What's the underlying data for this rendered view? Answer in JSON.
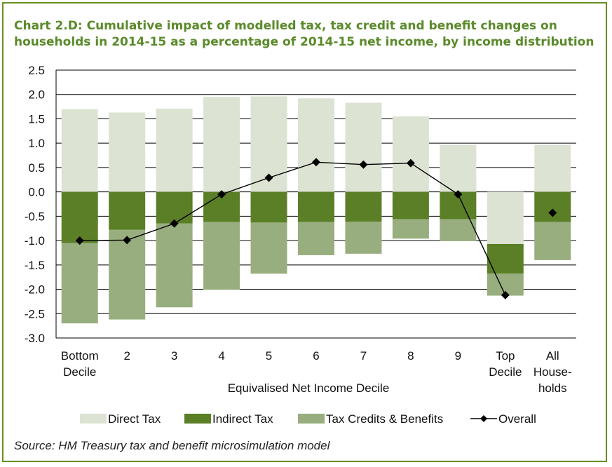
{
  "chart_data": {
    "type": "bar",
    "stacked": true,
    "title": "Chart 2.D: Cumulative impact of modelled tax, tax credit and benefit changes on households in 2014-15 as a percentage of 2014-15 net income, by income distribution",
    "title_lines": [
      "Chart 2.D: Cumulative impact of modelled tax, tax credit and benefit changes on",
      "households in 2014-15 as a percentage of 2014-15 net income, by income distribution"
    ],
    "xlabel": "Equivalised Net Income Decile",
    "ylabel": "",
    "ylim": [
      -3.0,
      2.5
    ],
    "yticks": [
      "2.5",
      "2.0",
      "1.5",
      "1.0",
      "0.5",
      "0.0",
      "-0.5",
      "-1.0",
      "-1.5",
      "-2.0",
      "-2.5",
      "-3.0"
    ],
    "ytick_values": [
      2.5,
      2.0,
      1.5,
      1.0,
      0.5,
      0.0,
      -0.5,
      -1.0,
      -1.5,
      -2.0,
      -2.5,
      -3.0
    ],
    "grid": true,
    "legend_position": "bottom",
    "categories": [
      [
        "Bottom",
        "Decile"
      ],
      [
        "2"
      ],
      [
        "3"
      ],
      [
        "4"
      ],
      [
        "5"
      ],
      [
        "6"
      ],
      [
        "7"
      ],
      [
        "8"
      ],
      [
        "9"
      ],
      [
        "Top",
        "Decile"
      ],
      [
        "All",
        "House-",
        "holds"
      ]
    ],
    "series": [
      {
        "name": "Direct Tax",
        "color": "#dde3d3",
        "values": [
          1.7,
          1.63,
          1.71,
          1.95,
          1.96,
          1.92,
          1.83,
          1.55,
          0.96,
          -1.07,
          0.96
        ]
      },
      {
        "name": "Indirect Tax",
        "color": "#5b7f26",
        "values": [
          -1.05,
          -0.78,
          -0.65,
          -0.62,
          -0.63,
          -0.62,
          -0.61,
          -0.56,
          -0.56,
          -0.61,
          -0.62
        ]
      },
      {
        "name": "Tax Credits & Benefits",
        "color": "#98ae7e",
        "values": [
          -1.65,
          -1.84,
          -1.72,
          -1.39,
          -1.05,
          -0.68,
          -0.66,
          -0.4,
          -0.45,
          -0.45,
          -0.78
        ]
      },
      {
        "name": "Overall",
        "color": "#000000",
        "type": "line",
        "values": [
          -1.0,
          -0.99,
          -0.65,
          -0.05,
          0.29,
          0.61,
          0.56,
          0.59,
          -0.05,
          -2.12,
          -0.43
        ]
      }
    ],
    "source": "Source: HM Treasury tax and benefit microsimulation model"
  }
}
